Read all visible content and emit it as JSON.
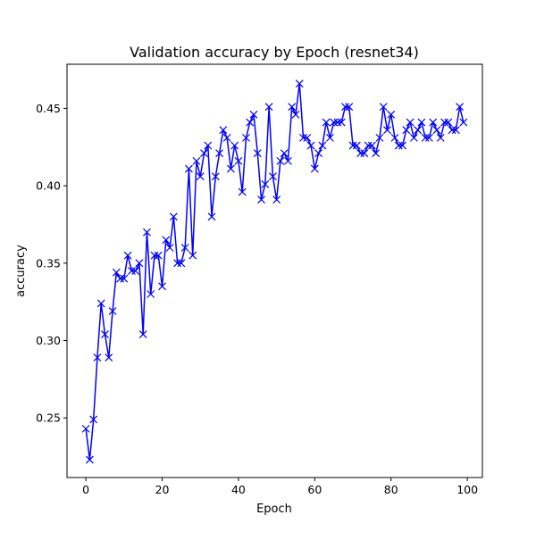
{
  "chart_data": {
    "type": "line",
    "title": "Validation accuracy by Epoch (resnet34)",
    "xlabel": "Epoch",
    "ylabel": "accuracy",
    "xlim": [
      -4.95,
      103.95
    ],
    "ylim": [
      0.2115,
      0.4785
    ],
    "xticks": [
      0,
      20,
      40,
      60,
      80,
      100
    ],
    "yticks": [
      0.25,
      0.3,
      0.35,
      0.4,
      0.45
    ],
    "ytick_labels": [
      "0.25",
      "0.30",
      "0.35",
      "0.40",
      "0.45"
    ],
    "grid": false,
    "legend": false,
    "series": [
      {
        "color": "#0000ff",
        "marker": "x",
        "x": [
          0,
          1,
          2,
          3,
          4,
          5,
          6,
          7,
          8,
          9,
          10,
          11,
          12,
          13,
          14,
          15,
          16,
          17,
          18,
          19,
          20,
          21,
          22,
          23,
          24,
          25,
          26,
          27,
          28,
          29,
          30,
          31,
          32,
          33,
          34,
          35,
          36,
          37,
          38,
          39,
          40,
          41,
          42,
          43,
          44,
          45,
          46,
          47,
          48,
          49,
          50,
          51,
          52,
          53,
          54,
          55,
          56,
          57,
          58,
          59,
          60,
          61,
          62,
          63,
          64,
          65,
          66,
          67,
          68,
          69,
          70,
          71,
          72,
          73,
          74,
          75,
          76,
          77,
          78,
          79,
          80,
          81,
          82,
          83,
          84,
          85,
          86,
          87,
          88,
          89,
          90,
          91,
          92,
          93,
          94,
          95,
          96,
          97,
          98,
          99
        ],
        "values": [
          0.243,
          0.223,
          0.249,
          0.289,
          0.324,
          0.304,
          0.289,
          0.319,
          0.344,
          0.34,
          0.34,
          0.355,
          0.345,
          0.345,
          0.35,
          0.304,
          0.37,
          0.33,
          0.355,
          0.355,
          0.335,
          0.365,
          0.36,
          0.38,
          0.35,
          0.35,
          0.36,
          0.411,
          0.355,
          0.416,
          0.406,
          0.421,
          0.426,
          0.38,
          0.406,
          0.421,
          0.436,
          0.431,
          0.411,
          0.426,
          0.416,
          0.396,
          0.431,
          0.441,
          0.446,
          0.421,
          0.391,
          0.401,
          0.451,
          0.406,
          0.391,
          0.416,
          0.421,
          0.416,
          0.451,
          0.446,
          0.466,
          0.431,
          0.431,
          0.426,
          0.411,
          0.421,
          0.426,
          0.441,
          0.431,
          0.441,
          0.441,
          0.441,
          0.451,
          0.451,
          0.426,
          0.426,
          0.421,
          0.421,
          0.426,
          0.426,
          0.421,
          0.431,
          0.451,
          0.436,
          0.446,
          0.431,
          0.426,
          0.426,
          0.436,
          0.441,
          0.431,
          0.436,
          0.441,
          0.431,
          0.431,
          0.441,
          0.436,
          0.431,
          0.441,
          0.441,
          0.436,
          0.436,
          0.451,
          0.441
        ]
      }
    ]
  }
}
